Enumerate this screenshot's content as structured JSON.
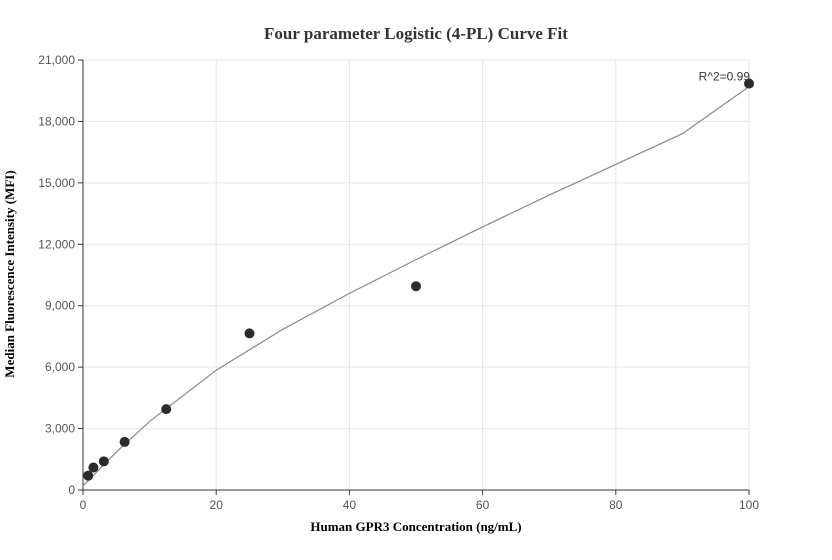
{
  "chart_data": {
    "type": "scatter",
    "title": "Four parameter Logistic (4-PL) Curve Fit",
    "xlabel": "Human GPR3 Concentration (ng/mL)",
    "ylabel": "Median Fluorescence Intensity (MFI)",
    "xlim": [
      0,
      100
    ],
    "ylim": [
      0,
      21000
    ],
    "xticks": [
      0,
      20,
      40,
      60,
      80,
      100
    ],
    "yticks": [
      0,
      3000,
      6000,
      9000,
      12000,
      15000,
      18000,
      21000
    ],
    "xtick_labels": [
      "0",
      "20",
      "40",
      "60",
      "80",
      "100"
    ],
    "ytick_labels": [
      "0",
      "3,000",
      "6,000",
      "9,000",
      "12,000",
      "15,000",
      "18,000",
      "21,000"
    ],
    "grid": true,
    "annotation": "R^2=0.99",
    "points": {
      "x": [
        0.78,
        1.56,
        3.13,
        6.25,
        12.5,
        25,
        50,
        100
      ],
      "y": [
        700,
        1100,
        1400,
        2350,
        3950,
        7650,
        9950,
        19850
      ]
    },
    "fit_curve": {
      "x": [
        0,
        5,
        10,
        20,
        30,
        40,
        50,
        60,
        70,
        80,
        90,
        100
      ],
      "y": [
        200,
        1850,
        3350,
        5850,
        7850,
        9600,
        11250,
        12850,
        14400,
        15900,
        17400,
        19700
      ]
    }
  }
}
